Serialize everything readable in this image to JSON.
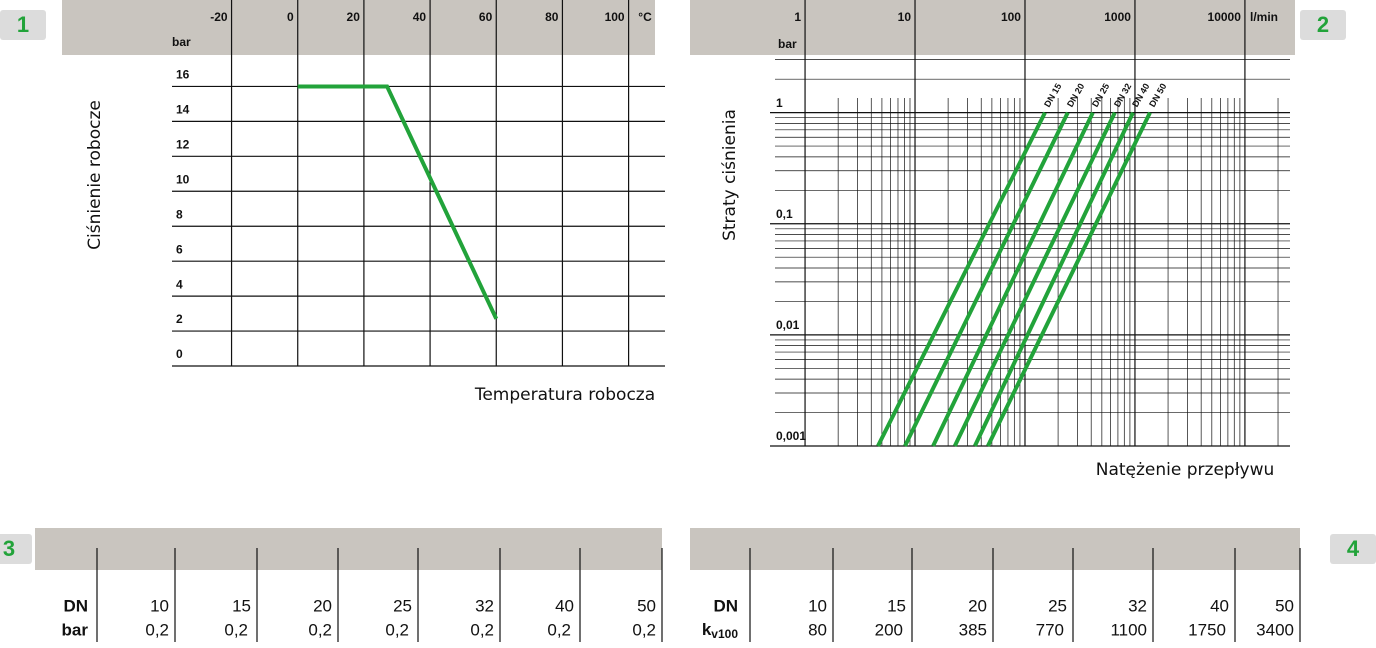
{
  "badges": [
    "1",
    "2",
    "3",
    "4"
  ],
  "chart_data": [
    {
      "type": "line",
      "x_label": "Temperatura robocza",
      "y_label": "Ciśnienie robocze",
      "x_unit": "°C",
      "y_unit": "bar",
      "x": [
        0,
        27,
        60
      ],
      "values": [
        16,
        16,
        2.7
      ],
      "color": "#22a33a",
      "xlim": [
        -38,
        111
      ],
      "ylim": [
        0,
        17.8
      ],
      "xticks": [
        -20,
        0,
        20,
        40,
        60,
        80,
        100
      ],
      "yticks": [
        0,
        2,
        4,
        6,
        8,
        10,
        12,
        14,
        16
      ],
      "grid": true
    },
    {
      "type": "line",
      "log_x": true,
      "log_y": true,
      "x_label": "Natężenie przepływu",
      "y_label": "Straty ciśnienia",
      "x_unit": "l/min",
      "y_unit": "bar",
      "series": [
        {
          "name": "DN 15",
          "color": "#22a33a",
          "x": [
            4.6,
            152
          ],
          "values": [
            0.001,
            1
          ]
        },
        {
          "name": "DN 20",
          "color": "#22a33a",
          "x": [
            8.1,
            245
          ],
          "values": [
            0.001,
            1
          ]
        },
        {
          "name": "DN 25",
          "color": "#22a33a",
          "x": [
            14.6,
            414
          ],
          "values": [
            0.001,
            1
          ]
        },
        {
          "name": "DN 32",
          "color": "#22a33a",
          "x": [
            23,
            656
          ],
          "values": [
            0.001,
            1
          ]
        },
        {
          "name": "DN 40",
          "color": "#22a33a",
          "x": [
            35,
            960
          ],
          "values": [
            0.001,
            1
          ]
        },
        {
          "name": "DN 50",
          "color": "#22a33a",
          "x": [
            46,
            1370
          ],
          "values": [
            0.001,
            1
          ]
        }
      ],
      "xlim": [
        0.48,
        25700
      ],
      "ylim": [
        0.001,
        3.3
      ],
      "xticks": [
        1,
        10,
        100,
        1000,
        10000
      ],
      "yticks": [
        {
          "value": 0.001,
          "label": "0,001"
        },
        {
          "value": 0.01,
          "label": "0,01"
        },
        {
          "value": 0.1,
          "label": "0,1"
        },
        1
      ],
      "grid": true,
      "minor_grid": true
    }
  ],
  "tables": [
    {
      "rows": [
        [
          "DN",
          10,
          15,
          20,
          25,
          32,
          40,
          50
        ],
        [
          "bar",
          "0,2",
          "0,2",
          "0,2",
          "0,2",
          "0,2",
          "0,2",
          "0,2"
        ]
      ]
    },
    {
      "rows": [
        [
          "DN",
          10,
          15,
          20,
          25,
          32,
          40,
          50
        ],
        [
          {
            "main": "k",
            "sub": "v100"
          },
          80,
          200,
          385,
          770,
          1100,
          1750,
          3400
        ]
      ]
    }
  ]
}
